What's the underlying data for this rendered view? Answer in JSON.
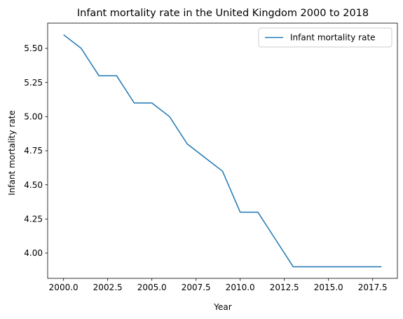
{
  "chart_data": {
    "type": "line",
    "title": "Infant mortality rate in the United Kingdom 2000 to 2018",
    "xlabel": "Year",
    "ylabel": "Infant mortality rate",
    "xlim": [
      1999.1,
      2018.9
    ],
    "ylim": [
      3.815,
      5.685
    ],
    "xticks": [
      2000.0,
      2002.5,
      2005.0,
      2007.5,
      2010.0,
      2012.5,
      2015.0,
      2017.5
    ],
    "xtick_labels": [
      "2000.0",
      "2002.5",
      "2005.0",
      "2007.5",
      "2010.0",
      "2012.5",
      "2015.0",
      "2017.5"
    ],
    "yticks": [
      4.0,
      4.25,
      4.5,
      4.75,
      5.0,
      5.25,
      5.5
    ],
    "ytick_labels": [
      "4.00",
      "4.25",
      "4.50",
      "4.75",
      "5.00",
      "5.25",
      "5.50"
    ],
    "grid": false,
    "legend_position": "top-right",
    "series": [
      {
        "name": "Infant mortality rate",
        "color": "#1f77b4",
        "x": [
          2000,
          2001,
          2002,
          2003,
          2004,
          2005,
          2006,
          2007,
          2008,
          2009,
          2010,
          2011,
          2012,
          2013,
          2014,
          2015,
          2016,
          2017,
          2018
        ],
        "y": [
          5.6,
          5.5,
          5.3,
          5.3,
          5.1,
          5.1,
          5.0,
          4.8,
          4.7,
          4.6,
          4.3,
          4.3,
          4.1,
          3.9,
          3.9,
          3.9,
          3.9,
          3.9,
          3.9
        ]
      }
    ]
  }
}
